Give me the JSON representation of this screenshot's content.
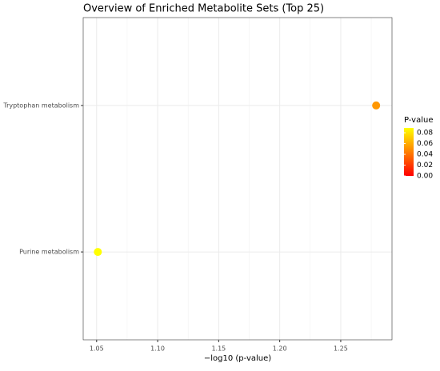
{
  "chart_data": {
    "type": "scatter",
    "title": "Overview of Enriched Metabolite Sets (Top 25)",
    "x_label": "−log10 (p-value)",
    "categories": [
      "Tryptophan metabolism",
      "Purine metabolism"
    ],
    "values": [
      1.279,
      1.051
    ],
    "p_values": [
      0.0526,
      0.0889
    ],
    "xlim": [
      1.039,
      1.292
    ],
    "xticks": [
      1.05,
      {
        "value": 1.1,
        "label": "1.10"
      },
      1.15,
      {
        "value": 1.2,
        "label": "1.20"
      },
      1.25
    ],
    "grid": true,
    "legend_position": "right",
    "color_scale": {
      "title": "P-value",
      "low": "#ff0000",
      "high": "#ffff00",
      "lim": [
        0,
        0.089
      ],
      "ticks": [
        {
          "value": 0,
          "label": "0.00"
        },
        0.02,
        0.04,
        0.06,
        0.08
      ]
    }
  }
}
